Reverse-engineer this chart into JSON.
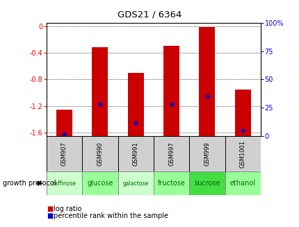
{
  "title": "GDS21 / 6364",
  "samples": [
    "GSM907",
    "GSM990",
    "GSM991",
    "GSM997",
    "GSM999",
    "GSM1001"
  ],
  "protocols": [
    "raffinose",
    "glucose",
    "galactose",
    "fructose",
    "sucrose",
    "ethanol"
  ],
  "log_ratios": [
    -1.25,
    -0.32,
    -0.7,
    -0.3,
    -0.02,
    -0.95
  ],
  "percentile_ranks": [
    2,
    28,
    12,
    28,
    35,
    5
  ],
  "ylim_left": [
    -1.65,
    0.05
  ],
  "ylim_right": [
    0,
    100
  ],
  "yticks_left": [
    0,
    -0.4,
    -0.8,
    -1.2,
    -1.6
  ],
  "yticks_right": [
    0,
    25,
    50,
    75,
    100
  ],
  "bar_color": "#cc0000",
  "percentile_color": "#0000cc",
  "bg_color": "#ffffff",
  "protocol_bg": [
    "#ccffcc",
    "#99ff99",
    "#ccffcc",
    "#99ff99",
    "#44dd44",
    "#99ff99"
  ],
  "legend_items": [
    {
      "label": "log ratio",
      "color": "#cc0000"
    },
    {
      "label": "percentile rank within the sample",
      "color": "#0000cc"
    }
  ]
}
